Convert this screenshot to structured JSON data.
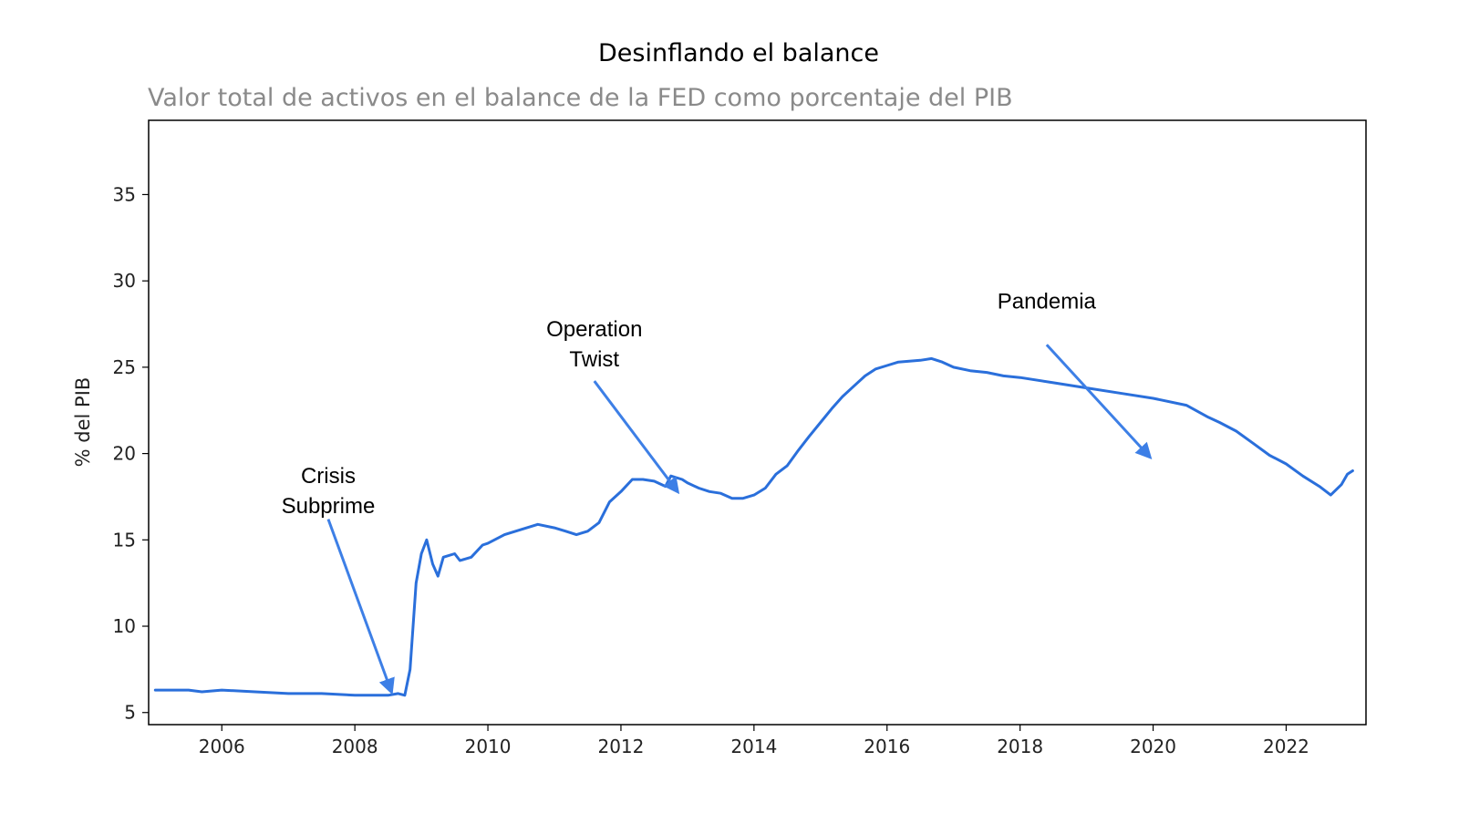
{
  "chart_data": {
    "type": "line",
    "title": "Desinflando el balance",
    "subtitle": "Valor total de activos en el balance de la FED como porcentaje del PIB",
    "ylabel": "% del PIB",
    "xlabel": "",
    "xlim": [
      2004.9,
      2023.2
    ],
    "ylim": [
      4.3,
      39.3
    ],
    "x_ticks": [
      2006,
      2008,
      2010,
      2012,
      2014,
      2016,
      2018,
      2020,
      2022
    ],
    "y_ticks": [
      5,
      10,
      15,
      20,
      25,
      30,
      35
    ],
    "grid": false,
    "line_color": "#2a6fdb",
    "annotation_color": "#3d7fe6",
    "series": [
      {
        "points": [
          [
            2005.0,
            6.3
          ],
          [
            2005.5,
            6.3
          ],
          [
            2005.7,
            6.2
          ],
          [
            2006.0,
            6.3
          ],
          [
            2006.5,
            6.2
          ],
          [
            2007.0,
            6.1
          ],
          [
            2007.5,
            6.1
          ],
          [
            2008.0,
            6.0
          ],
          [
            2008.3,
            6.0
          ],
          [
            2008.5,
            6.0
          ],
          [
            2008.65,
            6.1
          ],
          [
            2008.75,
            6.0
          ],
          [
            2008.83,
            7.5
          ],
          [
            2008.92,
            12.5
          ],
          [
            2009.0,
            14.2
          ],
          [
            2009.08,
            15.0
          ],
          [
            2009.17,
            13.6
          ],
          [
            2009.25,
            12.9
          ],
          [
            2009.33,
            14.0
          ],
          [
            2009.5,
            14.2
          ],
          [
            2009.58,
            13.8
          ],
          [
            2009.75,
            14.0
          ],
          [
            2009.92,
            14.7
          ],
          [
            2010.0,
            14.8
          ],
          [
            2010.25,
            15.3
          ],
          [
            2010.5,
            15.6
          ],
          [
            2010.75,
            15.9
          ],
          [
            2011.0,
            15.7
          ],
          [
            2011.17,
            15.5
          ],
          [
            2011.33,
            15.3
          ],
          [
            2011.5,
            15.5
          ],
          [
            2011.67,
            16.0
          ],
          [
            2011.83,
            17.2
          ],
          [
            2012.0,
            17.8
          ],
          [
            2012.17,
            18.5
          ],
          [
            2012.33,
            18.5
          ],
          [
            2012.5,
            18.4
          ],
          [
            2012.67,
            18.1
          ],
          [
            2012.75,
            18.7
          ],
          [
            2012.92,
            18.5
          ],
          [
            2013.0,
            18.3
          ],
          [
            2013.17,
            18.0
          ],
          [
            2013.33,
            17.8
          ],
          [
            2013.5,
            17.7
          ],
          [
            2013.67,
            17.4
          ],
          [
            2013.83,
            17.4
          ],
          [
            2014.0,
            17.6
          ],
          [
            2014.17,
            18.0
          ],
          [
            2014.33,
            18.8
          ],
          [
            2014.5,
            19.3
          ],
          [
            2014.67,
            20.2
          ],
          [
            2014.83,
            21.0
          ],
          [
            2015.0,
            21.8
          ],
          [
            2015.17,
            22.6
          ],
          [
            2015.33,
            23.3
          ],
          [
            2015.5,
            23.9
          ],
          [
            2015.67,
            24.5
          ],
          [
            2015.83,
            24.9
          ],
          [
            2016.0,
            25.1
          ],
          [
            2016.17,
            25.3
          ],
          [
            2016.5,
            25.4
          ],
          [
            2016.67,
            25.5
          ],
          [
            2016.83,
            25.3
          ],
          [
            2017.0,
            25.0
          ],
          [
            2017.25,
            24.8
          ],
          [
            2017.5,
            24.7
          ],
          [
            2017.75,
            24.5
          ],
          [
            2018.0,
            24.4
          ],
          [
            2018.5,
            24.1
          ],
          [
            2019.0,
            23.8
          ],
          [
            2019.5,
            23.5
          ],
          [
            2020.0,
            23.2
          ],
          [
            2020.5,
            22.8
          ],
          [
            2020.83,
            22.1
          ],
          [
            2021.0,
            21.8
          ],
          [
            2021.25,
            21.3
          ],
          [
            2021.5,
            20.6
          ],
          [
            2021.75,
            19.9
          ],
          [
            2022.0,
            19.4
          ],
          [
            2022.25,
            18.7
          ],
          [
            2022.5,
            18.1
          ],
          [
            2022.67,
            17.6
          ],
          [
            2022.83,
            18.2
          ],
          [
            2022.92,
            18.8
          ],
          [
            2023.0,
            19.0
          ]
        ]
      }
    ],
    "annotations": [
      {
        "lines": [
          "Crisis",
          "Subprime"
        ],
        "text_x": 2007.6,
        "text_y": 18.3,
        "arrow_from": [
          2007.6,
          16.2
        ],
        "arrow_to": [
          2008.55,
          6.2
        ]
      },
      {
        "lines": [
          "Operation",
          "Twist"
        ],
        "text_x": 2011.6,
        "text_y": 26.8,
        "arrow_from": [
          2011.6,
          24.2
        ],
        "arrow_to": [
          2012.85,
          17.8
        ]
      },
      {
        "lines": [
          "Pandemia"
        ],
        "text_x": 2018.4,
        "text_y": 28.4,
        "arrow_from": [
          2018.4,
          26.3
        ],
        "arrow_to": [
          2019.95,
          19.8
        ]
      }
    ]
  }
}
